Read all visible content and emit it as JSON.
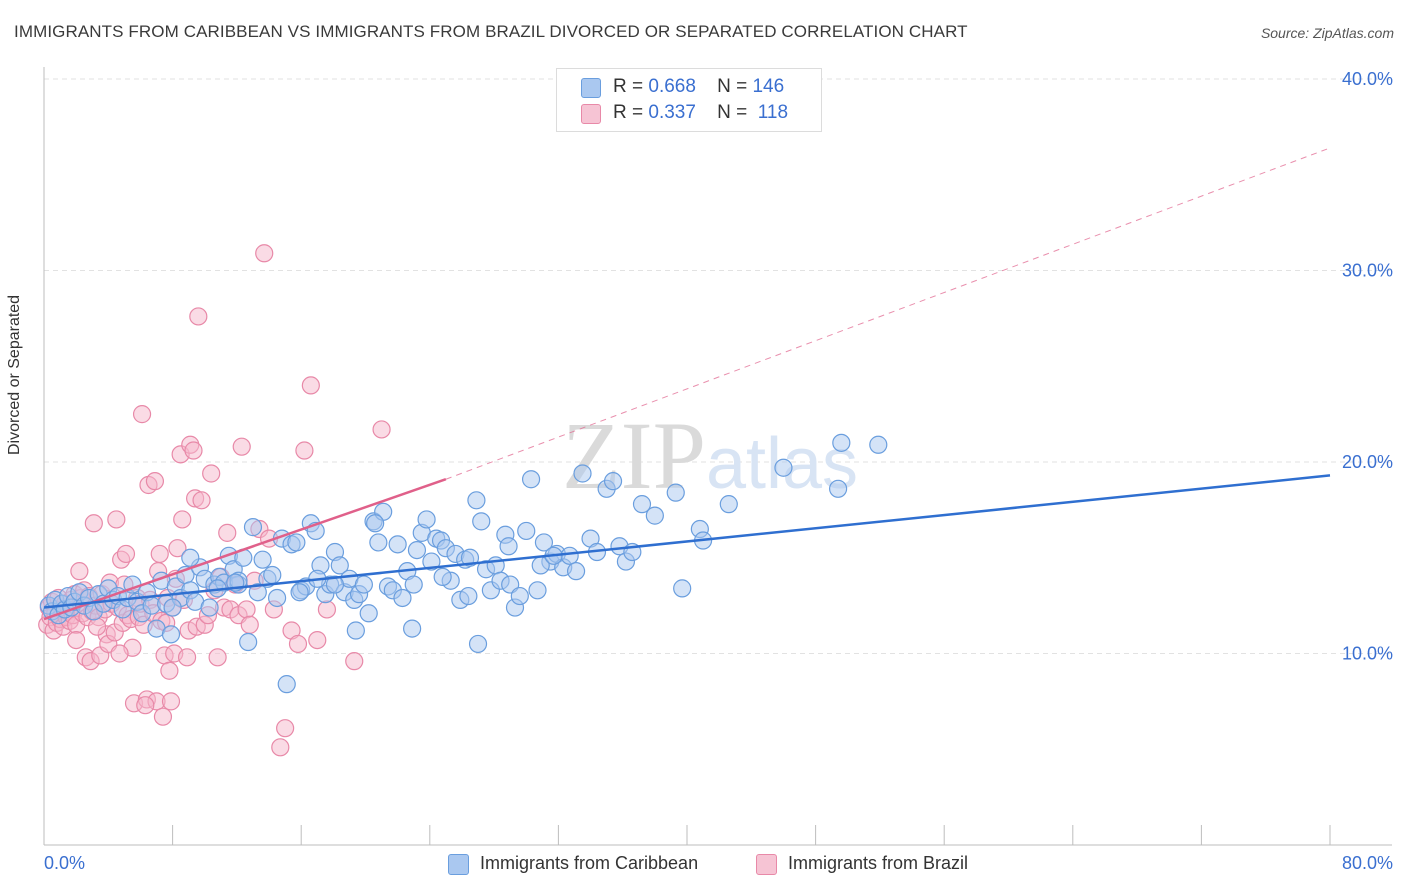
{
  "header": {
    "title": "IMMIGRANTS FROM CARIBBEAN VS IMMIGRANTS FROM BRAZIL DIVORCED OR SEPARATED CORRELATION CHART",
    "source": "Source: ZipAtlas.com"
  },
  "legend": {
    "rows": [
      {
        "r_label": "R =",
        "r_value": "0.668",
        "n_label": "N =",
        "n_value": "146"
      },
      {
        "r_label": "R =",
        "r_value": "0.337",
        "n_label": "N =",
        "n_value": "118"
      }
    ]
  },
  "colors": {
    "caribbean_fill": "#aac8f0",
    "caribbean_stroke": "#6a9ede",
    "caribbean_line": "#2f6fd0",
    "brazil_fill": "#f6b8cc",
    "brazil_stroke": "#e889a8",
    "brazil_line": "#e0608a",
    "grid": "#e2e2e2",
    "axis_label": "#3a6fd0"
  },
  "chart_data": {
    "type": "scatter",
    "title": "IMMIGRANTS FROM CARIBBEAN VS IMMIGRANTS FROM BRAZIL DIVORCED OR SEPARATED CORRELATION CHART",
    "xlabel": "",
    "ylabel": "Divorced or Separated",
    "xlim": [
      0,
      80
    ],
    "ylim": [
      0,
      42
    ],
    "x_tick_labels": [
      "0.0%",
      "80.0%"
    ],
    "y_ticks": [
      10,
      20,
      30,
      40
    ],
    "y_tick_labels": [
      "10.0%",
      "20.0%",
      "30.0%",
      "40.0%"
    ],
    "grid": true,
    "legend_position": "bottom-center",
    "series": [
      {
        "name": "Immigrants from Caribbean",
        "r": 0.668,
        "n": 146,
        "trend": {
          "x": [
            0,
            80
          ],
          "y": [
            12.4,
            19.3
          ]
        },
        "points": [
          [
            0.3,
            12.5
          ],
          [
            0.5,
            12.2
          ],
          [
            0.7,
            12.8
          ],
          [
            0.9,
            12.0
          ],
          [
            1.1,
            12.6
          ],
          [
            1.3,
            12.3
          ],
          [
            1.5,
            13.0
          ],
          [
            1.7,
            12.4
          ],
          [
            1.9,
            12.7
          ],
          [
            2.2,
            13.2
          ],
          [
            2.5,
            12.5
          ],
          [
            2.8,
            12.9
          ],
          [
            3.1,
            12.2
          ],
          [
            3.4,
            13.1
          ],
          [
            3.7,
            12.6
          ],
          [
            4.0,
            13.4
          ],
          [
            4.3,
            12.8
          ],
          [
            4.6,
            13.0
          ],
          [
            4.9,
            12.3
          ],
          [
            5.2,
            12.9
          ],
          [
            5.5,
            13.6
          ],
          [
            5.8,
            12.7
          ],
          [
            6.1,
            12.1
          ],
          [
            6.4,
            13.2
          ],
          [
            6.7,
            12.5
          ],
          [
            7.0,
            11.3
          ],
          [
            7.3,
            13.8
          ],
          [
            7.6,
            12.6
          ],
          [
            7.9,
            11.0
          ],
          [
            8.2,
            13.5
          ],
          [
            8.5,
            12.9
          ],
          [
            8.8,
            14.1
          ],
          [
            9.1,
            13.3
          ],
          [
            9.4,
            12.7
          ],
          [
            9.7,
            14.5
          ],
          [
            10.0,
            13.9
          ],
          [
            10.3,
            12.4
          ],
          [
            10.6,
            13.6
          ],
          [
            10.9,
            14.0
          ],
          [
            11.2,
            13.7
          ],
          [
            11.5,
            15.1
          ],
          [
            11.8,
            14.4
          ],
          [
            12.1,
            13.6
          ],
          [
            12.4,
            15.0
          ],
          [
            12.7,
            10.6
          ],
          [
            13.0,
            16.6
          ],
          [
            13.3,
            13.2
          ],
          [
            13.6,
            14.9
          ],
          [
            13.9,
            13.9
          ],
          [
            14.2,
            14.1
          ],
          [
            14.5,
            12.9
          ],
          [
            14.8,
            16.0
          ],
          [
            15.1,
            8.4
          ],
          [
            15.4,
            15.7
          ],
          [
            15.7,
            15.8
          ],
          [
            16.0,
            13.3
          ],
          [
            16.3,
            13.5
          ],
          [
            16.6,
            16.8
          ],
          [
            16.9,
            16.4
          ],
          [
            17.2,
            14.6
          ],
          [
            17.5,
            13.1
          ],
          [
            17.8,
            13.6
          ],
          [
            18.1,
            15.3
          ],
          [
            18.4,
            14.6
          ],
          [
            18.7,
            13.2
          ],
          [
            19.0,
            13.9
          ],
          [
            19.3,
            12.8
          ],
          [
            19.6,
            13.1
          ],
          [
            19.9,
            13.6
          ],
          [
            20.2,
            12.1
          ],
          [
            20.5,
            16.9
          ],
          [
            20.8,
            15.8
          ],
          [
            21.1,
            17.4
          ],
          [
            21.4,
            13.5
          ],
          [
            21.7,
            13.3
          ],
          [
            22.0,
            15.7
          ],
          [
            22.3,
            12.9
          ],
          [
            22.6,
            14.3
          ],
          [
            22.9,
            11.3
          ],
          [
            23.2,
            15.4
          ],
          [
            23.5,
            16.3
          ],
          [
            23.8,
            17.0
          ],
          [
            24.1,
            14.8
          ],
          [
            24.4,
            16.0
          ],
          [
            24.7,
            15.9
          ],
          [
            25.0,
            15.5
          ],
          [
            25.3,
            13.8
          ],
          [
            25.6,
            15.2
          ],
          [
            25.9,
            12.8
          ],
          [
            26.2,
            14.9
          ],
          [
            26.5,
            15.0
          ],
          [
            26.9,
            18.0
          ],
          [
            27.2,
            16.9
          ],
          [
            27.5,
            14.4
          ],
          [
            27.8,
            13.3
          ],
          [
            28.1,
            14.6
          ],
          [
            28.4,
            13.8
          ],
          [
            28.7,
            16.2
          ],
          [
            29.0,
            13.6
          ],
          [
            29.3,
            12.4
          ],
          [
            29.6,
            13.0
          ],
          [
            30.0,
            16.4
          ],
          [
            30.3,
            19.1
          ],
          [
            30.7,
            13.3
          ],
          [
            31.1,
            15.8
          ],
          [
            31.5,
            14.8
          ],
          [
            31.9,
            15.2
          ],
          [
            32.3,
            14.5
          ],
          [
            32.7,
            15.1
          ],
          [
            33.1,
            14.3
          ],
          [
            33.5,
            19.4
          ],
          [
            34.0,
            16.0
          ],
          [
            34.4,
            15.3
          ],
          [
            35.0,
            18.6
          ],
          [
            35.4,
            19.0
          ],
          [
            35.8,
            15.6
          ],
          [
            36.2,
            14.8
          ],
          [
            36.6,
            15.3
          ],
          [
            37.2,
            17.8
          ],
          [
            38.0,
            17.2
          ],
          [
            39.3,
            18.4
          ],
          [
            39.7,
            13.4
          ],
          [
            40.8,
            16.5
          ],
          [
            41.0,
            15.9
          ],
          [
            42.6,
            17.8
          ],
          [
            46.0,
            19.7
          ],
          [
            49.4,
            18.6
          ],
          [
            49.6,
            21.0
          ],
          [
            51.9,
            20.9
          ],
          [
            9.1,
            15.0
          ],
          [
            10.8,
            13.4
          ],
          [
            18.1,
            13.6
          ],
          [
            20.6,
            16.8
          ],
          [
            24.8,
            14.0
          ],
          [
            27.0,
            10.5
          ],
          [
            12.1,
            13.8
          ],
          [
            15.9,
            13.2
          ],
          [
            19.4,
            11.2
          ],
          [
            23.0,
            13.6
          ],
          [
            30.9,
            14.6
          ],
          [
            26.4,
            13.0
          ],
          [
            28.9,
            15.6
          ],
          [
            11.9,
            13.7
          ],
          [
            17.0,
            13.9
          ],
          [
            31.7,
            15.1
          ],
          [
            8.0,
            12.4
          ]
        ]
      },
      {
        "name": "Immigrants from Brazil",
        "r": 0.337,
        "n": 118,
        "trend": {
          "x": [
            0,
            25
          ],
          "y": [
            11.8,
            19.1
          ]
        },
        "trend_extension": {
          "x": [
            25,
            80
          ],
          "y": [
            19.1,
            36.4
          ]
        },
        "points": [
          [
            0.2,
            11.5
          ],
          [
            0.3,
            12.4
          ],
          [
            0.4,
            11.9
          ],
          [
            0.5,
            12.7
          ],
          [
            0.6,
            11.2
          ],
          [
            0.7,
            12.1
          ],
          [
            0.8,
            11.6
          ],
          [
            0.9,
            12.9
          ],
          [
            1.0,
            11.8
          ],
          [
            1.1,
            12.3
          ],
          [
            1.2,
            11.4
          ],
          [
            1.3,
            12.6
          ],
          [
            1.4,
            11.9
          ],
          [
            1.5,
            12.2
          ],
          [
            1.6,
            11.7
          ],
          [
            1.7,
            12.8
          ],
          [
            1.8,
            12.0
          ],
          [
            1.9,
            13.1
          ],
          [
            2.0,
            11.5
          ],
          [
            2.1,
            12.4
          ],
          [
            2.2,
            14.3
          ],
          [
            2.3,
            12.9
          ],
          [
            2.4,
            12.1
          ],
          [
            2.5,
            13.3
          ],
          [
            2.6,
            9.8
          ],
          [
            2.7,
            11.9
          ],
          [
            2.8,
            13.0
          ],
          [
            2.9,
            9.6
          ],
          [
            3.0,
            12.2
          ],
          [
            3.1,
            16.8
          ],
          [
            3.2,
            12.5
          ],
          [
            3.4,
            11.9
          ],
          [
            3.5,
            9.9
          ],
          [
            3.6,
            13.1
          ],
          [
            3.8,
            12.3
          ],
          [
            3.9,
            11.0
          ],
          [
            4.0,
            10.5
          ],
          [
            4.1,
            13.7
          ],
          [
            4.2,
            12.6
          ],
          [
            4.4,
            11.1
          ],
          [
            4.5,
            17.0
          ],
          [
            4.6,
            12.4
          ],
          [
            4.8,
            14.9
          ],
          [
            4.9,
            11.6
          ],
          [
            5.0,
            13.6
          ],
          [
            5.1,
            15.2
          ],
          [
            5.2,
            12.0
          ],
          [
            5.4,
            11.8
          ],
          [
            5.5,
            10.3
          ],
          [
            5.6,
            7.4
          ],
          [
            5.8,
            12.9
          ],
          [
            5.9,
            11.9
          ],
          [
            6.0,
            12.6
          ],
          [
            6.1,
            22.5
          ],
          [
            6.2,
            11.5
          ],
          [
            6.4,
            7.6
          ],
          [
            6.5,
            18.8
          ],
          [
            6.6,
            12.8
          ],
          [
            6.8,
            12.1
          ],
          [
            6.9,
            19.0
          ],
          [
            7.0,
            7.5
          ],
          [
            7.1,
            14.3
          ],
          [
            7.2,
            15.2
          ],
          [
            7.3,
            11.7
          ],
          [
            7.4,
            6.7
          ],
          [
            7.5,
            9.9
          ],
          [
            7.6,
            11.6
          ],
          [
            7.7,
            12.9
          ],
          [
            7.8,
            9.1
          ],
          [
            7.9,
            7.5
          ],
          [
            8.0,
            12.4
          ],
          [
            8.1,
            10.0
          ],
          [
            8.2,
            13.9
          ],
          [
            8.3,
            15.5
          ],
          [
            8.5,
            20.4
          ],
          [
            8.6,
            17.0
          ],
          [
            8.7,
            12.8
          ],
          [
            8.9,
            9.8
          ],
          [
            9.0,
            11.2
          ],
          [
            9.1,
            20.9
          ],
          [
            9.3,
            20.6
          ],
          [
            9.4,
            18.1
          ],
          [
            9.5,
            11.4
          ],
          [
            9.6,
            27.6
          ],
          [
            9.8,
            18.0
          ],
          [
            10.0,
            11.5
          ],
          [
            10.2,
            12.0
          ],
          [
            10.4,
            19.4
          ],
          [
            10.6,
            13.3
          ],
          [
            10.8,
            9.8
          ],
          [
            11.0,
            14.0
          ],
          [
            11.2,
            12.4
          ],
          [
            11.4,
            16.3
          ],
          [
            11.6,
            12.3
          ],
          [
            11.9,
            13.6
          ],
          [
            12.1,
            12.0
          ],
          [
            12.3,
            20.8
          ],
          [
            12.6,
            12.3
          ],
          [
            12.8,
            11.5
          ],
          [
            13.1,
            13.8
          ],
          [
            13.4,
            16.5
          ],
          [
            13.7,
            30.9
          ],
          [
            14.0,
            16.0
          ],
          [
            14.3,
            12.3
          ],
          [
            14.7,
            5.1
          ],
          [
            15.0,
            6.1
          ],
          [
            15.4,
            11.2
          ],
          [
            15.8,
            10.5
          ],
          [
            16.2,
            20.6
          ],
          [
            16.6,
            24.0
          ],
          [
            17.0,
            10.7
          ],
          [
            17.6,
            12.3
          ],
          [
            19.3,
            9.6
          ],
          [
            21.0,
            21.7
          ],
          [
            3.3,
            11.4
          ],
          [
            4.7,
            10.0
          ],
          [
            6.3,
            7.3
          ],
          [
            2.0,
            10.7
          ]
        ]
      }
    ]
  },
  "bottom_legend": {
    "items": [
      "Immigrants from Caribbean",
      "Immigrants from Brazil"
    ]
  }
}
